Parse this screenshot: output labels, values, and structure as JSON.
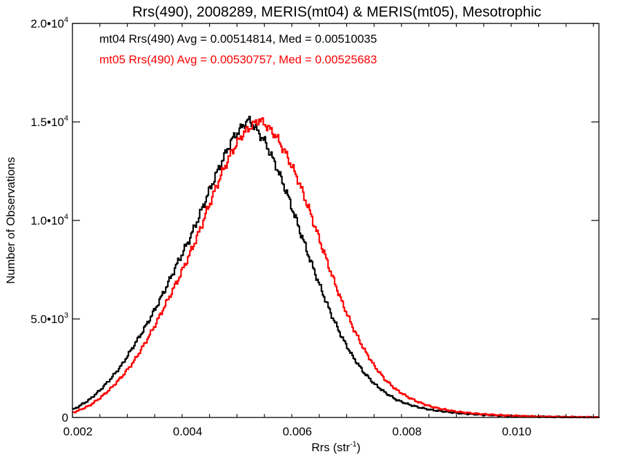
{
  "chart_data": {
    "type": "line",
    "title": "Rrs(490), 2008289, MERIS(mt04) & MERIS(mt05), Mesotrophic",
    "xlabel": "Rrs (str",
    "xlabel_sup": "-1",
    "xlabel_close": ")",
    "ylabel": "Number of Observations",
    "xlim": [
      0.0019,
      0.0115
    ],
    "ylim": [
      0,
      20000
    ],
    "step": true,
    "grid": false,
    "x_ticks": [
      {
        "value": 0.002,
        "label": "0.002"
      },
      {
        "value": 0.004,
        "label": "0.004"
      },
      {
        "value": 0.006,
        "label": "0.006"
      },
      {
        "value": 0.008,
        "label": "0.008"
      },
      {
        "value": 0.01,
        "label": "0.010"
      }
    ],
    "y_ticks": [
      {
        "value": 0,
        "label": "0",
        "sup": ""
      },
      {
        "value": 5000,
        "label": "5.0•10",
        "sup": "3"
      },
      {
        "value": 10000,
        "label": "1.0•10",
        "sup": "4"
      },
      {
        "value": 15000,
        "label": "1.5•10",
        "sup": "4"
      },
      {
        "value": 20000,
        "label": "2.0•10",
        "sup": "4"
      }
    ],
    "annotations": [
      {
        "text": "mt04 Rrs(490) Avg = 0.00514814, Med = 0.00510035",
        "color": "#000000"
      },
      {
        "text": "mt05 Rrs(490) Avg = 0.00530757, Med = 0.00525683",
        "color": "#ff0000"
      }
    ],
    "series": [
      {
        "color": "#000000",
        "x": [
          0.0019,
          0.002,
          0.0022,
          0.0024,
          0.0026,
          0.0028,
          0.003,
          0.0032,
          0.0034,
          0.0036,
          0.0038,
          0.004,
          0.0042,
          0.0044,
          0.0046,
          0.0048,
          0.005,
          0.0051,
          0.0052,
          0.0054,
          0.0056,
          0.0058,
          0.006,
          0.0062,
          0.0064,
          0.0066,
          0.0068,
          0.007,
          0.0072,
          0.0074,
          0.0076,
          0.0078,
          0.008,
          0.0082,
          0.0084,
          0.0086,
          0.0088,
          0.009,
          0.0094,
          0.0098,
          0.0102,
          0.0106,
          0.011,
          0.0115
        ],
        "y": [
          400,
          550,
          900,
          1400,
          2000,
          2700,
          3600,
          4500,
          5500,
          6600,
          7800,
          8900,
          10200,
          11600,
          12900,
          14100,
          14800,
          15100,
          14800,
          14000,
          12800,
          11400,
          9800,
          8200,
          6700,
          5300,
          4100,
          3100,
          2300,
          1700,
          1250,
          900,
          680,
          520,
          400,
          320,
          260,
          200,
          130,
          80,
          50,
          30,
          15,
          5
        ]
      },
      {
        "color": "#ff0000",
        "x": [
          0.0019,
          0.002,
          0.0022,
          0.0024,
          0.0026,
          0.0028,
          0.003,
          0.0032,
          0.0034,
          0.0036,
          0.0038,
          0.004,
          0.0042,
          0.0044,
          0.0046,
          0.0048,
          0.005,
          0.0052,
          0.0053,
          0.0054,
          0.0056,
          0.0058,
          0.006,
          0.0062,
          0.0064,
          0.0066,
          0.0068,
          0.007,
          0.0072,
          0.0074,
          0.0076,
          0.0078,
          0.008,
          0.0082,
          0.0084,
          0.0086,
          0.0088,
          0.009,
          0.0094,
          0.0098,
          0.0102,
          0.0106,
          0.011,
          0.0115
        ],
        "y": [
          250,
          350,
          600,
          1000,
          1500,
          2100,
          2800,
          3700,
          4700,
          5800,
          6900,
          8100,
          9400,
          10900,
          12300,
          13500,
          14400,
          14900,
          15100,
          14900,
          14300,
          13300,
          12100,
          10600,
          9000,
          7400,
          5900,
          4600,
          3500,
          2600,
          1900,
          1400,
          1050,
          780,
          580,
          440,
          340,
          260,
          160,
          100,
          60,
          35,
          20,
          5
        ]
      }
    ]
  }
}
